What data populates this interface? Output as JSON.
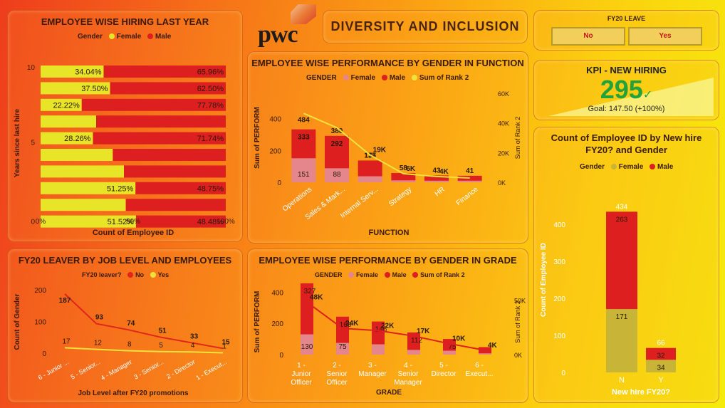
{
  "logo_text": "pwc",
  "header": {
    "title": "DIVERSITY AND INCLUSION"
  },
  "colors": {
    "female_hiring": "#e8e427",
    "male": "#dd1f1f",
    "female_perf": "#e5868c",
    "rank_line": "#eee23c",
    "leaver_no": "#e0261b",
    "leaver_yes": "#eee23c",
    "new_female": "#c8b437",
    "kpi_green": "#22a23a"
  },
  "slicer": {
    "title": "FY20 LEAVE",
    "options": [
      "No",
      "Yes"
    ]
  },
  "kpi": {
    "title": "KPI - NEW HIRING",
    "value": "295",
    "check": "✓",
    "goal": "Goal: 147.50 (+100%)",
    "progress_ratio": 1
  },
  "chart_data": [
    {
      "id": "hiring",
      "type": "bar",
      "title": "EMPLOYEE WISE HIRING LAST YEAR",
      "legend_title": "Gender",
      "legend": [
        "Female",
        "Male"
      ],
      "xlabel": "Count of Employee ID",
      "ylabel": "Years since last hire",
      "x_ticks": [
        "0%",
        "50%",
        "100%"
      ],
      "y_ticks": [
        "10",
        "5",
        "0"
      ],
      "rows": [
        {
          "female": 34.04,
          "female_label": "34.04%",
          "male_label": "65.96%"
        },
        {
          "female": 37.5,
          "female_label": "37.50%",
          "male_label": "62.50%"
        },
        {
          "female": 22.22,
          "female_label": "22.22%",
          "male_label": "77.78%"
        },
        {
          "female": 30.0,
          "female_label": "",
          "male_label": ""
        },
        {
          "female": 28.26,
          "female_label": "28.26%",
          "male_label": "71.74%"
        },
        {
          "female": 39.0,
          "female_label": "",
          "male_label": ""
        },
        {
          "female": 45.0,
          "female_label": "",
          "male_label": ""
        },
        {
          "female": 51.25,
          "female_label": "51.25%",
          "male_label": "48.75%"
        },
        {
          "female": 46.0,
          "female_label": "",
          "male_label": ""
        },
        {
          "female": 51.52,
          "female_label": "51.52%",
          "male_label": "48.48%"
        }
      ]
    },
    {
      "id": "perf_function",
      "type": "bar",
      "title": "EMPLOYEE WISE PERFORMANCE BY GENDER IN FUNCTION",
      "legend_title": "GENDER",
      "legend": [
        "Female",
        "Male",
        "Sum of Rank 2"
      ],
      "xlabel": "FUNCTION",
      "ylabel": "Sum of PERFORM",
      "y2label": "Sum of Rank 2",
      "ylim": [
        0,
        560
      ],
      "y_ticks": [
        0,
        200,
        400
      ],
      "y2_ticks": [
        "0K",
        "20K",
        "40K",
        "60K"
      ],
      "y2lim": [
        0,
        62000
      ],
      "categories": [
        "Operations",
        "Sales & Mark...",
        "Internal Serv...",
        "Strategy",
        "HR",
        "Finance"
      ],
      "female": [
        151,
        88,
        38,
        12,
        10,
        10
      ],
      "male": [
        182,
        204,
        99,
        46,
        33,
        31
      ],
      "total_labels": [
        "333",
        "292",
        "137",
        "58",
        "43",
        "41"
      ],
      "female_labels": [
        "151",
        "88",
        "",
        "",
        "",
        ""
      ],
      "top_labels": [
        "484",
        "380",
        "175",
        "",
        "",
        ""
      ],
      "rank": [
        48000,
        38000,
        19000,
        6000,
        4000,
        3000
      ],
      "rank_labels": [
        "",
        "",
        "19K",
        "6K",
        "4K",
        ""
      ]
    },
    {
      "id": "leaver",
      "type": "line",
      "title": "FY20 LEAVER BY JOB LEVEL AND EMPLOYEES",
      "legend_title": "FY20 leaver?",
      "legend": [
        "No",
        "Yes"
      ],
      "xlabel": "Job Level after FY20 promotions",
      "ylabel": "Count of Gender",
      "ylim": [
        0,
        200
      ],
      "y_ticks": [
        0,
        100,
        200
      ],
      "categories": [
        "6 - Junior ...",
        "5 - Senior...",
        "4 - Manager",
        "3 - Senior...",
        "2 - Director",
        "1 - Execut..."
      ],
      "no": [
        187,
        93,
        74,
        51,
        33,
        15
      ],
      "yes": [
        17,
        12,
        8,
        5,
        4,
        1
      ]
    },
    {
      "id": "perf_grade",
      "type": "bar",
      "title": "EMPLOYEE WISE PERFORMANCE BY GENDER IN GRADE",
      "legend_title": "GENDER",
      "legend": [
        "Female",
        "Male",
        "Sum of Rank 2"
      ],
      "xlabel": "GRADE",
      "ylabel": "Sum of PERFORM",
      "y2label": "Sum of Rank 2",
      "ylim": [
        0,
        420
      ],
      "y_ticks": [
        0,
        200,
        400
      ],
      "y2_ticks": [
        "0K",
        "50K"
      ],
      "y2lim": [
        0,
        60000
      ],
      "categories": [
        "1 - Junior Officer",
        "2 - Senior Officer",
        "3 - Manager",
        "4 - Senior Manager",
        "5 - Director",
        "6 - Execut..."
      ],
      "female": [
        130,
        75,
        66,
        30,
        25,
        8
      ],
      "male": [
        327,
        168,
        146,
        112,
        75,
        40
      ],
      "female_labels": [
        "130",
        "75",
        "",
        "",
        "",
        ""
      ],
      "male_labels": [
        "327",
        "168",
        "146",
        "112",
        "75",
        ""
      ],
      "rank": [
        48000,
        24000,
        22000,
        17000,
        10000,
        4000
      ],
      "rank_labels": [
        "48K",
        "24K",
        "22K",
        "17K",
        "10K",
        "4K"
      ]
    },
    {
      "id": "newhire",
      "type": "bar",
      "title": "Count of Employee ID by New hire FY20? and Gender",
      "legend_title": "Gender",
      "legend": [
        "Female",
        "Male"
      ],
      "xlabel": "New hire FY20?",
      "ylabel": "Count of Employee ID",
      "ylim": [
        0,
        500
      ],
      "y_ticks": [
        0,
        100,
        200,
        300,
        400
      ],
      "categories": [
        "N",
        "Y"
      ],
      "female": [
        171,
        34
      ],
      "male": [
        263,
        32
      ],
      "total": [
        434,
        66
      ]
    }
  ]
}
